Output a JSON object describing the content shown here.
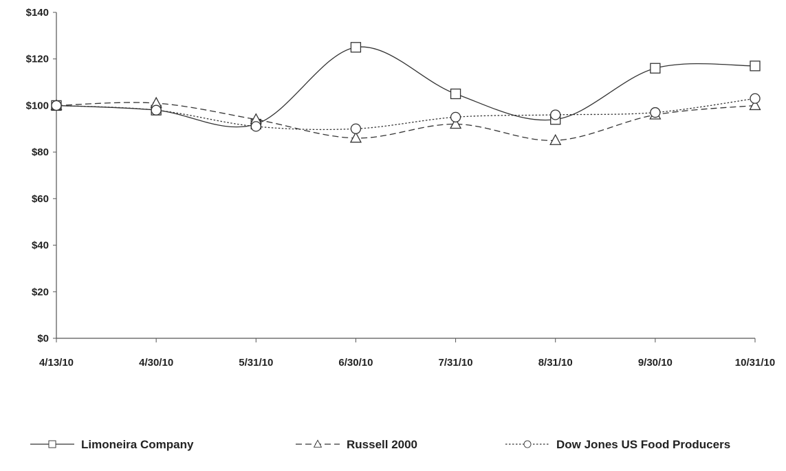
{
  "chart_data": {
    "type": "line",
    "title": "",
    "xlabel": "",
    "ylabel": "",
    "categories": [
      "4/13/10",
      "4/30/10",
      "5/31/10",
      "6/30/10",
      "7/31/10",
      "8/31/10",
      "9/30/10",
      "10/31/10"
    ],
    "y_ticks": [
      "$0",
      "$20",
      "$40",
      "$60",
      "$80",
      "$100",
      "$120",
      "$140"
    ],
    "ylim": [
      0,
      140
    ],
    "grid": false,
    "legend_position": "bottom",
    "series": [
      {
        "name": "Limoneira Company",
        "marker": "square",
        "dash": "solid",
        "color": "#333333",
        "values": [
          100,
          98,
          92,
          125,
          105,
          94,
          116,
          117
        ]
      },
      {
        "name": "Russell 2000",
        "marker": "triangle",
        "dash": "dashed",
        "color": "#333333",
        "values": [
          100,
          101,
          94,
          86,
          92,
          85,
          96,
          100
        ]
      },
      {
        "name": "Dow Jones US Food Producers",
        "marker": "circle",
        "dash": "dotted",
        "color": "#333333",
        "values": [
          100,
          98,
          91,
          90,
          95,
          96,
          97,
          103
        ]
      }
    ]
  }
}
